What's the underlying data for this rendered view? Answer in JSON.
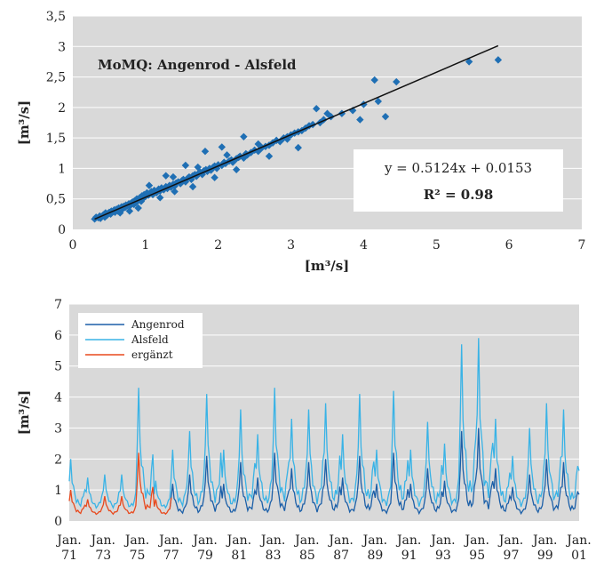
{
  "chart_data": [
    {
      "type": "scatter",
      "title": "MoMQ: Angenrod - Alsfeld",
      "xlabel": "[m³/s]",
      "ylabel": "[m³/s]",
      "xlim": [
        0,
        7
      ],
      "ylim": [
        0,
        3.5
      ],
      "x_ticks": [
        "0",
        "1",
        "2",
        "3",
        "4",
        "5",
        "6",
        "7"
      ],
      "y_ticks": [
        "0",
        "0,5",
        "1",
        "1,5",
        "2",
        "2,5",
        "3",
        "3,5"
      ],
      "grid": true,
      "marker_color": "#1f6fb4",
      "trendline_color": "#111111",
      "background_color": "#d9d9d9",
      "trendline": {
        "slope": 0.5124,
        "intercept": 0.0153
      },
      "equation": "y = 0.5124x + 0.0153",
      "r2_label": "R² = 0.98",
      "points": [
        [
          0.3,
          0.17
        ],
        [
          0.32,
          0.2
        ],
        [
          0.35,
          0.19
        ],
        [
          0.37,
          0.22
        ],
        [
          0.38,
          0.18
        ],
        [
          0.4,
          0.21
        ],
        [
          0.42,
          0.24
        ],
        [
          0.44,
          0.2
        ],
        [
          0.45,
          0.27
        ],
        [
          0.47,
          0.23
        ],
        [
          0.48,
          0.26
        ],
        [
          0.5,
          0.28
        ],
        [
          0.52,
          0.25
        ],
        [
          0.53,
          0.3
        ],
        [
          0.55,
          0.29
        ],
        [
          0.57,
          0.32
        ],
        [
          0.58,
          0.28
        ],
        [
          0.6,
          0.33
        ],
        [
          0.62,
          0.3
        ],
        [
          0.63,
          0.35
        ],
        [
          0.65,
          0.34
        ],
        [
          0.67,
          0.37
        ],
        [
          0.68,
          0.33
        ],
        [
          0.7,
          0.38
        ],
        [
          0.72,
          0.36
        ],
        [
          0.73,
          0.4
        ],
        [
          0.75,
          0.39
        ],
        [
          0.77,
          0.42
        ],
        [
          0.78,
          0.38
        ],
        [
          0.8,
          0.43
        ],
        [
          0.82,
          0.45
        ],
        [
          0.84,
          0.41
        ],
        [
          0.85,
          0.47
        ],
        [
          0.87,
          0.44
        ],
        [
          0.88,
          0.5
        ],
        [
          0.9,
          0.48
        ],
        [
          0.92,
          0.52
        ],
        [
          0.94,
          0.46
        ],
        [
          0.95,
          0.55
        ],
        [
          0.97,
          0.51
        ],
        [
          0.98,
          0.57
        ],
        [
          1.0,
          0.54
        ],
        [
          1.02,
          0.6
        ],
        [
          1.04,
          0.56
        ],
        [
          1.05,
          0.58
        ],
        [
          1.08,
          0.62
        ],
        [
          1.1,
          0.57
        ],
        [
          1.12,
          0.64
        ],
        [
          1.15,
          0.6
        ],
        [
          1.18,
          0.66
        ],
        [
          1.2,
          0.63
        ],
        [
          1.22,
          0.68
        ],
        [
          1.25,
          0.65
        ],
        [
          1.28,
          0.7
        ],
        [
          1.3,
          0.67
        ],
        [
          1.33,
          0.72
        ],
        [
          1.35,
          0.69
        ],
        [
          1.38,
          0.74
        ],
        [
          1.4,
          0.71
        ],
        [
          1.42,
          0.76
        ],
        [
          1.45,
          0.78
        ],
        [
          1.48,
          0.75
        ],
        [
          1.5,
          0.8
        ],
        [
          1.52,
          0.82
        ],
        [
          1.55,
          0.78
        ],
        [
          1.58,
          0.84
        ],
        [
          1.6,
          0.86
        ],
        [
          1.63,
          0.82
        ],
        [
          1.65,
          0.88
        ],
        [
          1.68,
          0.9
        ],
        [
          1.7,
          0.87
        ],
        [
          1.73,
          0.92
        ],
        [
          1.75,
          0.94
        ],
        [
          1.78,
          0.9
        ],
        [
          1.8,
          0.96
        ],
        [
          1.83,
          0.98
        ],
        [
          1.85,
          0.95
        ],
        [
          1.88,
          1.0
        ],
        [
          1.9,
          0.97
        ],
        [
          1.93,
          1.02
        ],
        [
          1.95,
          1.04
        ],
        [
          1.98,
          1.0
        ],
        [
          2.0,
          1.06
        ],
        [
          2.05,
          1.05
        ],
        [
          2.08,
          1.1
        ],
        [
          2.1,
          1.08
        ],
        [
          2.15,
          1.12
        ],
        [
          2.18,
          1.14
        ],
        [
          2.2,
          1.1
        ],
        [
          2.25,
          1.16
        ],
        [
          2.28,
          1.18
        ],
        [
          2.3,
          1.2
        ],
        [
          2.35,
          1.17
        ],
        [
          2.38,
          1.24
        ],
        [
          2.4,
          1.22
        ],
        [
          2.45,
          1.26
        ],
        [
          2.5,
          1.3
        ],
        [
          2.55,
          1.28
        ],
        [
          2.6,
          1.34
        ],
        [
          2.65,
          1.36
        ],
        [
          2.7,
          1.38
        ],
        [
          2.75,
          1.42
        ],
        [
          2.8,
          1.46
        ],
        [
          2.85,
          1.44
        ],
        [
          2.9,
          1.5
        ],
        [
          2.95,
          1.52
        ],
        [
          3.0,
          1.55
        ],
        [
          3.05,
          1.58
        ],
        [
          3.1,
          1.6
        ],
        [
          3.15,
          1.62
        ],
        [
          3.2,
          1.66
        ],
        [
          3.25,
          1.7
        ],
        [
          3.3,
          1.72
        ],
        [
          3.4,
          1.75
        ],
        [
          3.45,
          1.8
        ],
        [
          3.55,
          1.85
        ],
        [
          3.7,
          1.9
        ],
        [
          3.85,
          1.95
        ],
        [
          4.0,
          2.05
        ],
        [
          2.35,
          1.52
        ],
        [
          2.05,
          1.35
        ],
        [
          1.82,
          1.28
        ],
        [
          1.55,
          1.05
        ],
        [
          1.28,
          0.88
        ],
        [
          1.05,
          0.72
        ],
        [
          2.55,
          1.4
        ],
        [
          2.95,
          1.48
        ],
        [
          3.35,
          1.98
        ],
        [
          3.5,
          1.9
        ],
        [
          3.95,
          1.8
        ],
        [
          4.15,
          2.45
        ],
        [
          4.2,
          2.1
        ],
        [
          4.3,
          1.85
        ],
        [
          4.45,
          2.42
        ],
        [
          5.45,
          2.75
        ],
        [
          5.85,
          2.78
        ],
        [
          1.65,
          0.7
        ],
        [
          1.95,
          0.85
        ],
        [
          2.25,
          0.98
        ],
        [
          2.7,
          1.2
        ],
        [
          3.1,
          1.34
        ],
        [
          0.9,
          0.35
        ],
        [
          1.2,
          0.52
        ],
        [
          1.4,
          0.62
        ],
        [
          0.65,
          0.27
        ],
        [
          0.78,
          0.3
        ],
        [
          2.12,
          1.22
        ],
        [
          1.72,
          1.02
        ],
        [
          1.38,
          0.86
        ]
      ]
    },
    {
      "type": "line",
      "ylabel": "[m³/s]",
      "ylim": [
        0,
        7
      ],
      "y_ticks": [
        "0",
        "1",
        "2",
        "3",
        "4",
        "5",
        "6",
        "7"
      ],
      "x_tick_labels": [
        [
          "Jan.",
          "71"
        ],
        [
          "Jan.",
          "73"
        ],
        [
          "Jan.",
          "75"
        ],
        [
          "Jan.",
          "77"
        ],
        [
          "Jan.",
          "79"
        ],
        [
          "Jan.",
          "81"
        ],
        [
          "Jan.",
          "83"
        ],
        [
          "Jan.",
          "85"
        ],
        [
          "Jan.",
          "87"
        ],
        [
          "Jan.",
          "89"
        ],
        [
          "Jan.",
          "91"
        ],
        [
          "Jan.",
          "93"
        ],
        [
          "Jan.",
          "95"
        ],
        [
          "Jan.",
          "97"
        ],
        [
          "Jan.",
          "99"
        ],
        [
          "Jan.",
          "01"
        ]
      ],
      "x_range": [
        "1971-01",
        "2001-01"
      ],
      "grid": true,
      "background_color": "#d9d9d9",
      "legend_position": "top-left",
      "annual_peaks": {
        "years": [
          1971,
          1972,
          1973,
          1974,
          1975,
          1976,
          1977,
          1978,
          1979,
          1980,
          1981,
          1982,
          1983,
          1984,
          1985,
          1986,
          1987,
          1988,
          1989,
          1990,
          1991,
          1992,
          1993,
          1994,
          1995,
          1996,
          1997,
          1998,
          1999,
          2000
        ],
        "Alsfeld": [
          2.0,
          1.4,
          1.5,
          1.5,
          4.3,
          1.3,
          2.3,
          2.9,
          4.1,
          2.3,
          3.6,
          2.8,
          4.3,
          3.3,
          3.6,
          3.8,
          2.8,
          4.1,
          2.3,
          4.2,
          2.3,
          3.2,
          2.5,
          5.7,
          5.9,
          3.3,
          2.1,
          3.0,
          3.8,
          3.6
        ],
        "Angenrod": [
          1.0,
          0.7,
          0.8,
          0.8,
          2.2,
          0.7,
          1.2,
          1.5,
          2.1,
          1.2,
          1.9,
          1.4,
          2.2,
          1.7,
          1.9,
          2.0,
          1.4,
          2.1,
          1.2,
          2.2,
          1.2,
          1.7,
          1.3,
          2.9,
          3.0,
          1.7,
          1.1,
          1.5,
          2.0,
          1.9
        ]
      },
      "erganzt_range": [
        "1971-01",
        "1976-12"
      ],
      "series": [
        {
          "name": "Angenrod",
          "color": "#1b5fa8"
        },
        {
          "name": "Alsfeld",
          "color": "#39b3e6"
        },
        {
          "name": "ergänzt",
          "color": "#e8491d"
        }
      ]
    }
  ]
}
